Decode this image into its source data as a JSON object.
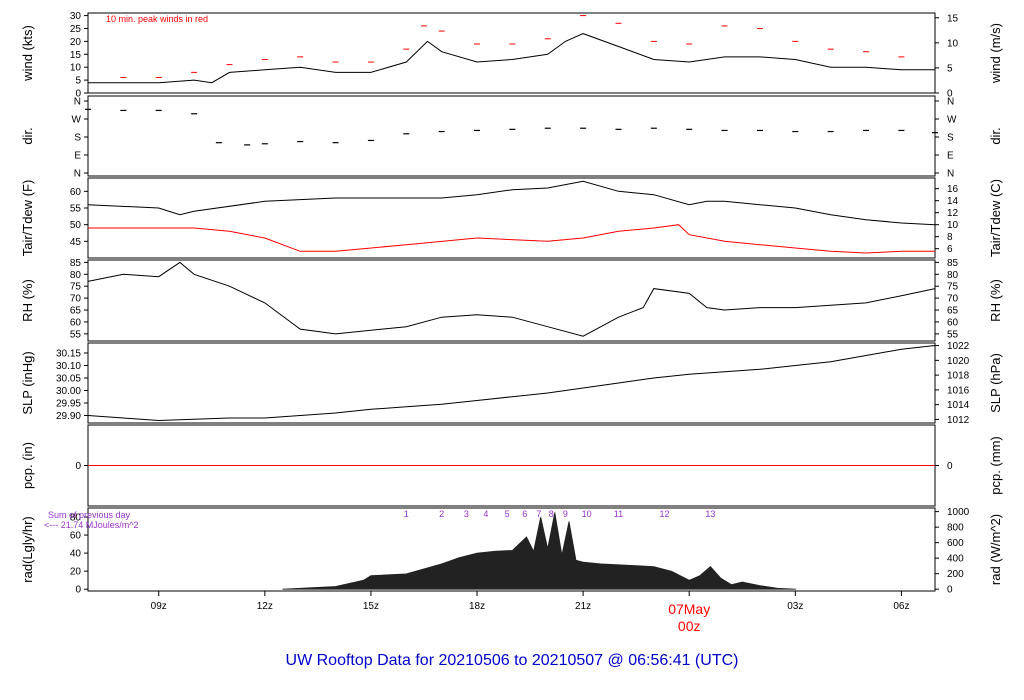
{
  "chart_data": {
    "type": "line",
    "title": "UW Rooftop Data for 20210506  to  20210507 @ 06:56:41  (UTC)",
    "x_axis": {
      "ticks": [
        "09z",
        "12z",
        "15z",
        "18z",
        "21z",
        "00z",
        "03z",
        "06z"
      ],
      "date_label": "07May",
      "range_hours_utc": [
        7.0,
        30.95
      ]
    },
    "panels": [
      {
        "id": "wind",
        "ylabel_left": "wind (kts)",
        "ylabel_right": "wind (m/s)",
        "left_ticks": [
          "0",
          "5",
          "10",
          "15",
          "20",
          "25",
          "30"
        ],
        "right_ticks": [
          "0",
          "5",
          "10",
          "15"
        ],
        "ylim": [
          0,
          31
        ],
        "annotation": "10 min. peak winds in red",
        "series": [
          {
            "name": "wind",
            "color": "#000000",
            "x": [
              7,
              8,
              9,
              10,
              10.5,
              11,
              12,
              13,
              14,
              15,
              16,
              16.6,
              17,
              18,
              19,
              20,
              20.5,
              21,
              22,
              23,
              24,
              25,
              26,
              27,
              28,
              29,
              30,
              30.95
            ],
            "y": [
              4,
              4,
              4,
              5,
              4,
              8,
              9,
              10,
              8,
              8,
              12,
              20,
              16,
              12,
              13,
              15,
              20,
              23,
              18,
              13,
              12,
              14,
              14,
              13,
              10,
              10,
              9,
              9
            ]
          },
          {
            "name": "peak",
            "color": "#ff0000",
            "x": [
              8,
              9,
              10,
              11,
              12,
              13,
              14,
              15,
              16,
              16.5,
              17,
              18,
              19,
              20,
              21,
              22,
              23,
              24,
              25,
              26,
              27,
              28,
              29,
              30
            ],
            "y": [
              6,
              6,
              8,
              11,
              13,
              14,
              12,
              12,
              17,
              26,
              24,
              19,
              19,
              21,
              30,
              27,
              20,
              19,
              26,
              25,
              20,
              17,
              16,
              14
            ]
          }
        ]
      },
      {
        "id": "dir",
        "ylabel_left": "dir.",
        "ylabel_right": "dir.",
        "left_ticks": [
          "N",
          "W",
          "S",
          "E",
          "N"
        ],
        "right_ticks": [
          "N",
          "W",
          "S",
          "E",
          "N"
        ],
        "ylim": [
          0,
          360
        ],
        "series": [
          {
            "name": "direction",
            "color": "#000000",
            "x": [
              7,
              8,
              9,
              10,
              10.7,
              11.5,
              12,
              13,
              14,
              15,
              16,
              17,
              18,
              19,
              20,
              21,
              22,
              23,
              24,
              25,
              26,
              27,
              28,
              29,
              30,
              30.95
            ],
            "y": [
              300,
              295,
              295,
              280,
              150,
              140,
              145,
              155,
              150,
              160,
              190,
              200,
              205,
              210,
              215,
              215,
              210,
              215,
              210,
              205,
              205,
              200,
              200,
              205,
              205,
              195
            ]
          }
        ]
      },
      {
        "id": "temp",
        "ylabel_left": "Tair/Tdew (F)",
        "ylabel_right": "Tair/Tdew (C)",
        "left_ticks": [
          "45",
          "50",
          "55",
          "60"
        ],
        "right_ticks": [
          "6",
          "8",
          "10",
          "12",
          "14",
          "16"
        ],
        "ylim": [
          40,
          64
        ],
        "series": [
          {
            "name": "Tair",
            "color": "#000000",
            "x": [
              7,
              9,
              9.6,
              10,
              12,
              14,
              16,
              17,
              18,
              19,
              20,
              21,
              22,
              23,
              24,
              24.5,
              25,
              26,
              27,
              28,
              29,
              30,
              30.95
            ],
            "y": [
              56,
              55,
              53,
              54,
              57,
              58,
              58,
              58,
              59,
              60.5,
              61,
              63,
              60,
              59,
              56,
              57,
              57,
              56,
              55,
              53,
              51.5,
              50.5,
              50
            ]
          },
          {
            "name": "Tdew",
            "color": "#ff0000",
            "x": [
              7,
              9,
              10,
              11,
              12,
              13,
              14,
              16,
              18,
              20,
              21,
              22,
              23,
              23.7,
              24,
              25,
              26,
              27,
              28,
              29,
              30,
              30.95
            ],
            "y": [
              49,
              49,
              49,
              48,
              46,
              42,
              42,
              44,
              46,
              45,
              46,
              48,
              49,
              50,
              47,
              45,
              44,
              43,
              42,
              41.5,
              42,
              42
            ]
          }
        ]
      },
      {
        "id": "rh",
        "ylabel_left": "RH (%)",
        "ylabel_right": "RH (%)",
        "left_ticks": [
          "55",
          "60",
          "65",
          "70",
          "75",
          "80",
          "85"
        ],
        "right_ticks": [
          "55",
          "60",
          "65",
          "70",
          "75",
          "80",
          "85"
        ],
        "ylim": [
          52,
          86
        ],
        "series": [
          {
            "name": "RH",
            "color": "#000000",
            "x": [
              7,
              8,
              9,
              9.6,
              10,
              11,
              12,
              13,
              14,
              16,
              17,
              18,
              19,
              20,
              21,
              22,
              22.7,
              23,
              24,
              24.5,
              25,
              26,
              27,
              28,
              29,
              30,
              30.95
            ],
            "y": [
              77,
              80,
              79,
              85,
              80,
              75,
              68,
              57,
              55,
              58,
              62,
              63,
              62,
              58,
              54,
              62,
              66,
              74,
              72,
              66,
              65,
              66,
              66,
              67,
              68,
              71,
              74
            ]
          }
        ]
      },
      {
        "id": "slp",
        "ylabel_left": "SLP (inHg)",
        "ylabel_right": "SLP (hPa)",
        "left_ticks": [
          "29.90",
          "29.95",
          "30.00",
          "30.05",
          "30.10",
          "30.15"
        ],
        "right_ticks": [
          "1012",
          "1014",
          "1016",
          "1018",
          "1020",
          "1022"
        ],
        "ylim": [
          29.87,
          30.19
        ],
        "series": [
          {
            "name": "SLP",
            "color": "#000000",
            "x": [
              7,
              8,
              9,
              10,
              11,
              12,
              13,
              14,
              15,
              16,
              17,
              18,
              19,
              20,
              21,
              22,
              23,
              24,
              25,
              26,
              27,
              28,
              29,
              30,
              30.95
            ],
            "y": [
              29.9,
              29.89,
              29.88,
              29.885,
              29.89,
              29.89,
              29.9,
              29.91,
              29.925,
              29.935,
              29.945,
              29.96,
              29.975,
              29.99,
              30.01,
              30.03,
              30.05,
              30.065,
              30.075,
              30.085,
              30.1,
              30.115,
              30.14,
              30.165,
              30.18
            ]
          }
        ]
      },
      {
        "id": "pcp",
        "ylabel_left": "pcp. (in)",
        "ylabel_right": "pcp. (mm)",
        "left_ticks": [
          "0"
        ],
        "right_ticks": [
          "0"
        ],
        "ylim": [
          -1,
          1
        ],
        "series": [
          {
            "name": "precip",
            "color": "#ff0000",
            "x": [
              7,
              30.95
            ],
            "y": [
              0,
              0
            ]
          }
        ]
      },
      {
        "id": "rad",
        "ylabel_left": "rad(Lgly/hr)",
        "ylabel_right": "rad (W/m^2)",
        "left_ticks": [
          "0",
          "20",
          "40",
          "60",
          "80"
        ],
        "right_ticks": [
          "0",
          "200",
          "400",
          "600",
          "800",
          "1000"
        ],
        "ylim": [
          -2,
          90
        ],
        "sum_label": "Sum of previous day",
        "sum_value": "<--- 21.74 MJoules/m^2",
        "hour_labels": [
          "1",
          "2",
          "3",
          "4",
          "5",
          "6",
          "7",
          "8",
          "9",
          "10",
          "11",
          "12",
          "13"
        ],
        "hour_label_x": [
          16.0,
          17.0,
          17.7,
          18.25,
          18.85,
          19.35,
          19.75,
          20.1,
          20.5,
          21.1,
          22.0,
          23.3,
          24.6
        ],
        "series": [
          {
            "name": "radiation",
            "color": "#222222",
            "x": [
              12.5,
              13,
              14,
              14.8,
              15,
              16,
              17,
              17.5,
              18,
              18.5,
              19,
              19.4,
              19.6,
              19.8,
              20,
              20.2,
              20.4,
              20.6,
              20.8,
              21,
              21.5,
              22,
              22.5,
              23,
              23.5,
              24,
              24.3,
              24.6,
              24.9,
              25.2,
              25.5,
              26,
              26.5,
              27
            ],
            "y": [
              0,
              1,
              3,
              10,
              15,
              17,
              28,
              35,
              40,
              42,
              43,
              58,
              42,
              80,
              45,
              85,
              38,
              75,
              32,
              30,
              28,
              27,
              26,
              25,
              20,
              10,
              15,
              25,
              12,
              5,
              8,
              4,
              1,
              0
            ]
          }
        ]
      }
    ]
  }
}
